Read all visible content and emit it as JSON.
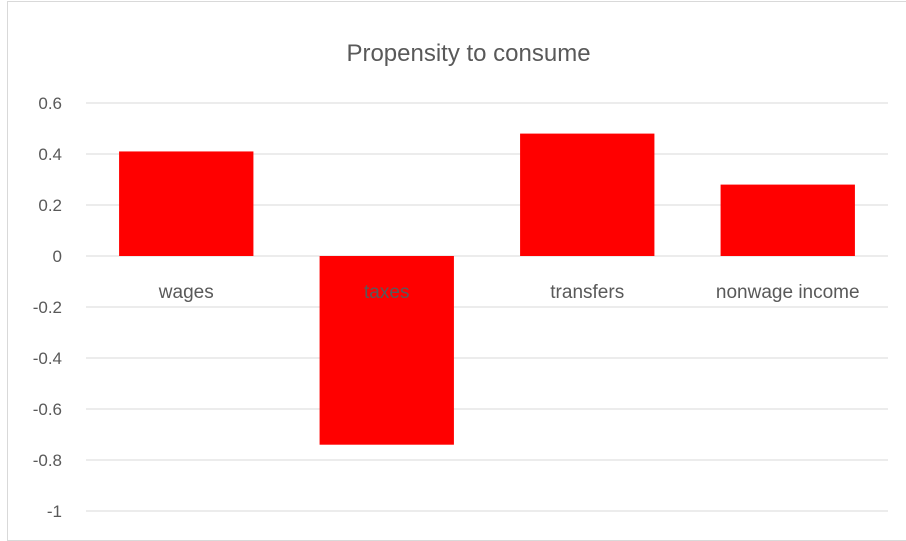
{
  "chart_data": {
    "type": "bar",
    "title": "Propensity to consume",
    "categories": [
      "wages",
      "taxes",
      "transfers",
      "nonwage income"
    ],
    "series": [
      {
        "values": [
          0.41,
          -0.74,
          0.48,
          0.28
        ],
        "color": "#ff0000"
      }
    ],
    "yticks": [
      "0.6",
      "0.4",
      "0.2",
      "0",
      "-0.2",
      "-0.4",
      "-0.6",
      "-0.8",
      "-1"
    ],
    "ylim": [
      -1,
      0.6
    ],
    "grid": true,
    "legend": "none"
  }
}
